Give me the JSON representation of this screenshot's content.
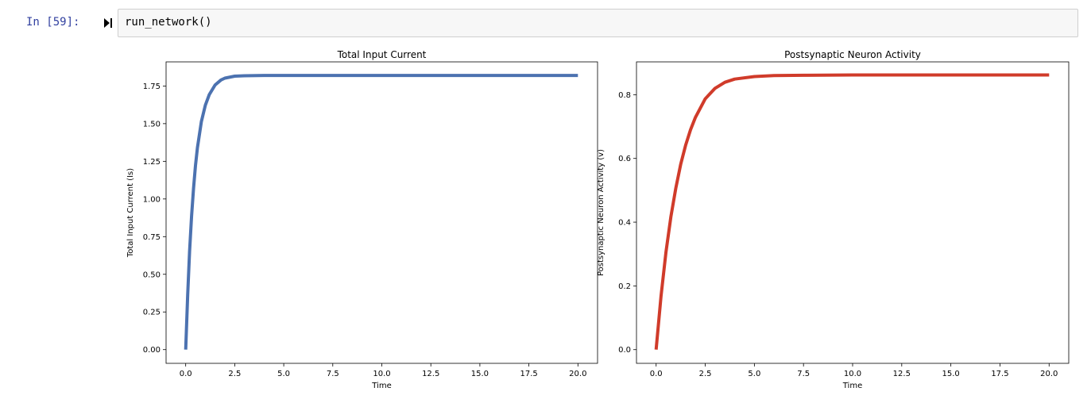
{
  "cell": {
    "prompt": "In [59]:",
    "code": "run_network()"
  },
  "chart_data": [
    {
      "type": "line",
      "title": "Total Input Current",
      "xlabel": "Time",
      "ylabel": "Total Input Current (Is)",
      "xlim": [
        -1,
        21
      ],
      "ylim": [
        -0.091,
        1.91
      ],
      "xticks": [
        0,
        2.5,
        5,
        7.5,
        10,
        12.5,
        15,
        17.5,
        20
      ],
      "xtick_labels": [
        "0.0",
        "2.5",
        "5.0",
        "7.5",
        "10.0",
        "12.5",
        "15.0",
        "17.5",
        "20.0"
      ],
      "yticks": [
        0,
        0.25,
        0.5,
        0.75,
        1.0,
        1.25,
        1.5,
        1.75
      ],
      "ytick_labels": [
        "0.00",
        "0.25",
        "0.50",
        "0.75",
        "1.00",
        "1.25",
        "1.50",
        "1.75"
      ],
      "grid": false,
      "series": [
        {
          "color": "#4c72b0",
          "x": [
            0,
            0.1,
            0.2,
            0.3,
            0.4,
            0.5,
            0.6,
            0.8,
            1.0,
            1.2,
            1.5,
            1.8,
            2.0,
            2.5,
            3.0,
            4.0,
            5.0,
            7.5,
            10.0,
            12.5,
            15.0,
            17.5,
            20.0
          ],
          "y": [
            0.0,
            0.363,
            0.654,
            0.887,
            1.073,
            1.222,
            1.342,
            1.513,
            1.622,
            1.692,
            1.757,
            1.79,
            1.802,
            1.815,
            1.818,
            1.82,
            1.82,
            1.82,
            1.82,
            1.82,
            1.82,
            1.82,
            1.82
          ]
        }
      ]
    },
    {
      "type": "line",
      "title": "Postsynaptic Neuron Activity",
      "xlabel": "Time",
      "ylabel": "Postsynaptic Neuron Activity (v)",
      "xlim": [
        -1,
        21
      ],
      "ylim": [
        -0.043,
        0.903
      ],
      "xticks": [
        0,
        2.5,
        5,
        7.5,
        10,
        12.5,
        15,
        17.5,
        20
      ],
      "xtick_labels": [
        "0.0",
        "2.5",
        "5.0",
        "7.5",
        "10.0",
        "12.5",
        "15.0",
        "17.5",
        "20.0"
      ],
      "yticks": [
        0,
        0.2,
        0.4,
        0.6,
        0.8
      ],
      "ytick_labels": [
        "0.0",
        "0.2",
        "0.4",
        "0.6",
        "0.8"
      ],
      "grid": false,
      "series": [
        {
          "color": "#d03b2a",
          "x": [
            0,
            0.25,
            0.5,
            0.75,
            1.0,
            1.25,
            1.5,
            1.75,
            2.0,
            2.5,
            3.0,
            3.5,
            4.0,
            5.0,
            6.0,
            7.5,
            10.0,
            12.5,
            15.0,
            17.5,
            20.0
          ],
          "y": [
            0.0,
            0.168,
            0.306,
            0.417,
            0.507,
            0.581,
            0.641,
            0.69,
            0.729,
            0.787,
            0.82,
            0.839,
            0.849,
            0.857,
            0.86,
            0.861,
            0.862,
            0.862,
            0.862,
            0.862,
            0.862
          ]
        }
      ]
    }
  ]
}
